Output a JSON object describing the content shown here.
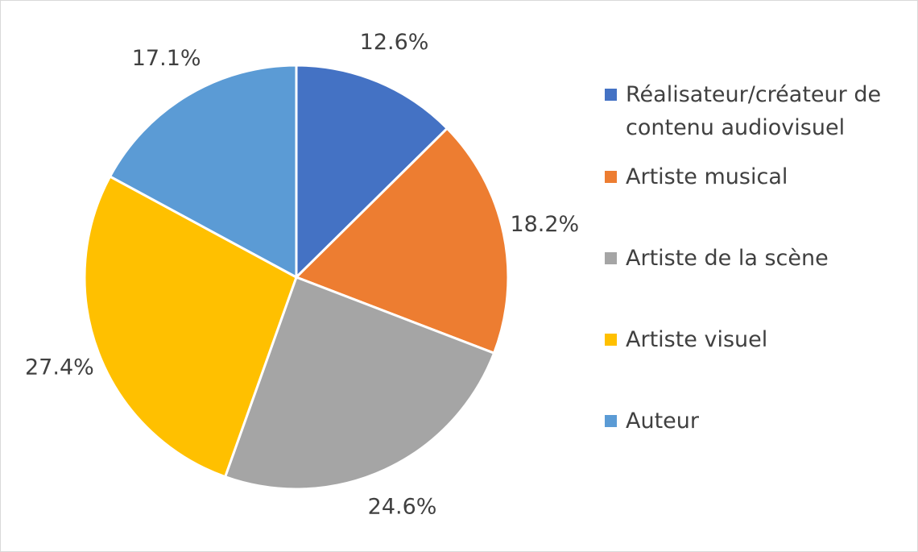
{
  "chart_data": {
    "type": "pie",
    "categories": [
      "Réalisateur/créateur de contenu audiovisuel",
      "Artiste musical",
      "Artiste de la scène",
      "Artiste visuel",
      "Auteur"
    ],
    "values": [
      12.6,
      18.2,
      24.6,
      27.4,
      17.1
    ],
    "value_labels": [
      "12.6%",
      "18.2%",
      "24.6%",
      "27.4%",
      "17.1%"
    ],
    "colors": [
      "#4472c4",
      "#ed7d31",
      "#a5a5a5",
      "#ffc000",
      "#5b9bd5"
    ],
    "legend": "right"
  }
}
